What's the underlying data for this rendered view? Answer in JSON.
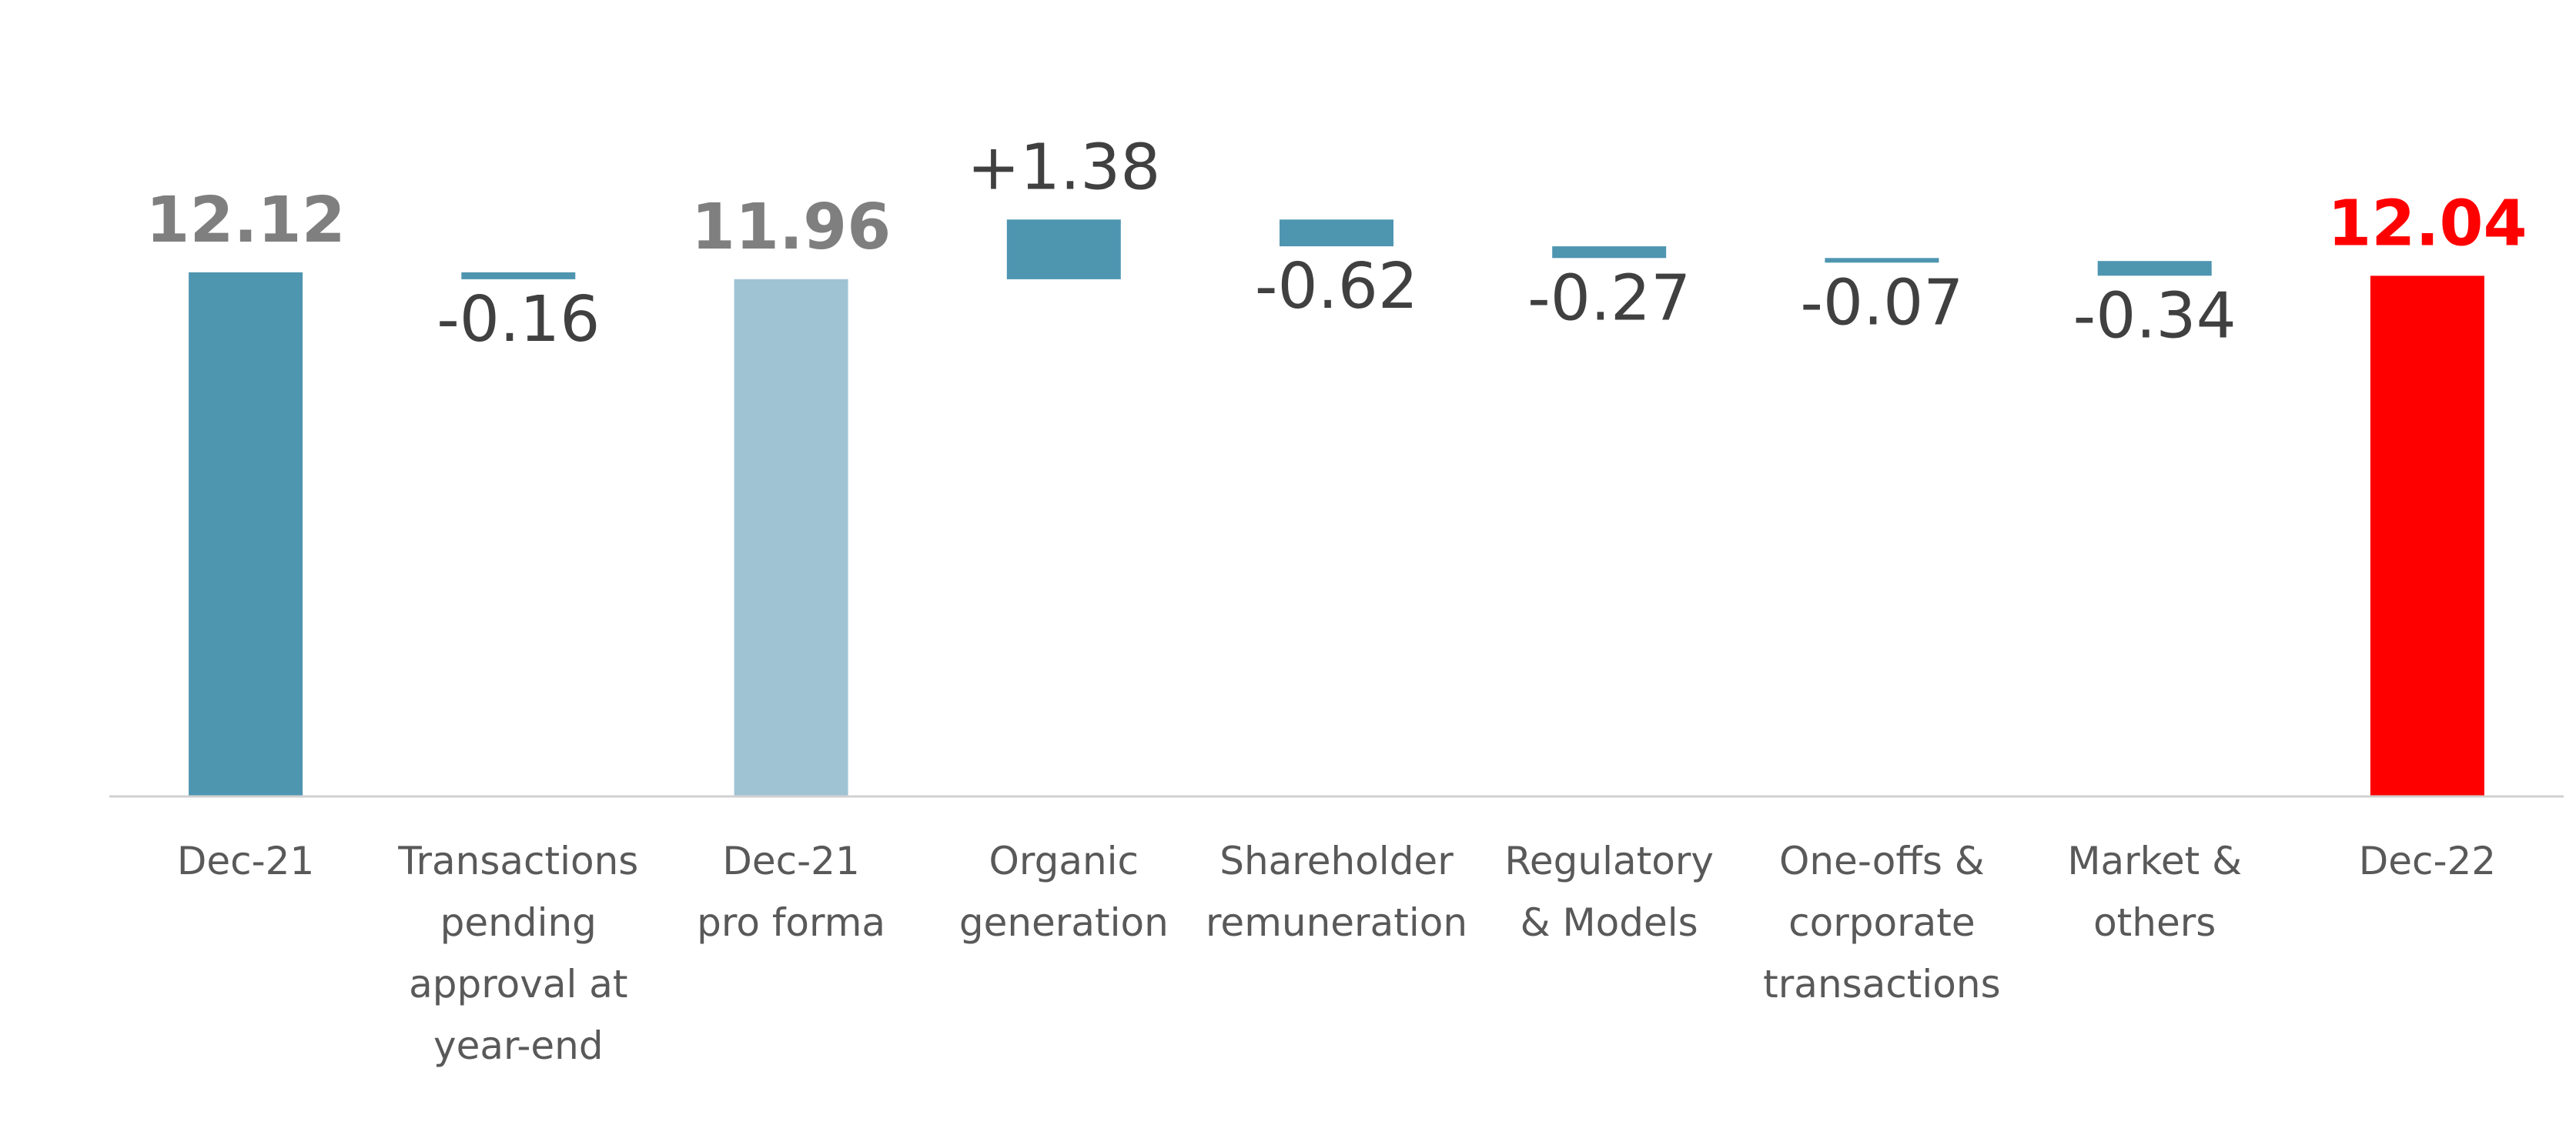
{
  "chart_data": {
    "type": "bar",
    "subtype": "waterfall",
    "categories": [
      [
        "Dec-21"
      ],
      [
        "Transactions",
        "pending",
        "approval at",
        "year-end"
      ],
      [
        "Dec-21",
        "pro forma"
      ],
      [
        "Organic",
        "generation"
      ],
      [
        "Shareholder",
        "remuneration"
      ],
      [
        "Regulatory",
        "& Models"
      ],
      [
        "One-offs &",
        "corporate",
        "transactions"
      ],
      [
        "Market &",
        "others"
      ],
      [
        "Dec-22"
      ]
    ],
    "values": [
      12.12,
      -0.16,
      11.96,
      1.38,
      -0.62,
      -0.27,
      -0.07,
      -0.34,
      12.04
    ],
    "value_labels": [
      "12.12",
      "-0.16",
      "11.96",
      "+1.38",
      "-0.62",
      "-0.27",
      "-0.07",
      "-0.34",
      "12.04"
    ],
    "kinds": [
      "total",
      "delta",
      "total",
      "delta",
      "delta",
      "delta",
      "delta",
      "delta",
      "total"
    ],
    "colors": {
      "dec21": "#4E95B0",
      "delta": "#4E95B0",
      "proforma": "#9FC3D3",
      "dec22": "#FF0000",
      "axis": "#D0D0D0",
      "category_text": "#595959",
      "delta_text": "#404040",
      "total_text": "#7F7F7F",
      "dec22_text": "#FF0000"
    },
    "bar_colors": [
      "#4E95B0",
      "#4E95B0",
      "#9FC3D3",
      "#4E95B0",
      "#4E95B0",
      "#4E95B0",
      "#4E95B0",
      "#4E95B0",
      "#FF0000"
    ],
    "label_colors": [
      "#7F7F7F",
      "#404040",
      "#7F7F7F",
      "#404040",
      "#404040",
      "#404040",
      "#404040",
      "#404040",
      "#FF0000"
    ],
    "ylim": [
      0,
      13.5
    ],
    "title": "",
    "xlabel": "",
    "ylabel": "",
    "grid": false,
    "legend": "none"
  }
}
